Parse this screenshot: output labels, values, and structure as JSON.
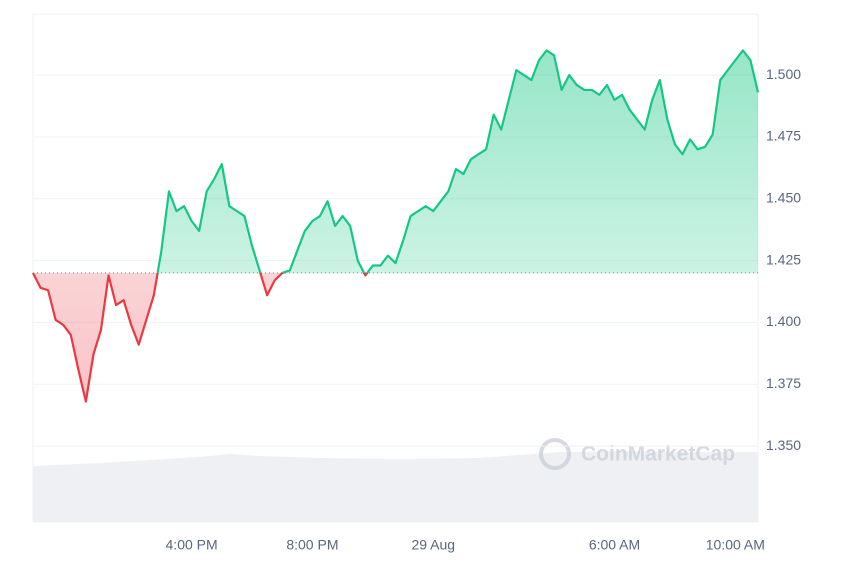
{
  "chart_data": {
    "type": "line",
    "watermark": "CoinMarketCap",
    "categories": [
      null,
      null,
      null,
      null,
      null,
      null,
      null,
      null,
      null,
      null,
      null,
      null,
      null,
      null,
      null,
      null,
      null,
      null,
      null,
      null,
      null,
      "4:00 PM",
      null,
      null,
      null,
      null,
      null,
      null,
      null,
      null,
      null,
      null,
      null,
      null,
      null,
      null,
      null,
      "8:00 PM",
      null,
      null,
      null,
      null,
      null,
      null,
      null,
      null,
      null,
      null,
      null,
      null,
      null,
      null,
      null,
      "29 Aug",
      null,
      null,
      null,
      null,
      null,
      null,
      null,
      null,
      null,
      null,
      null,
      null,
      null,
      null,
      null,
      null,
      null,
      null,
      null,
      null,
      null,
      null,
      null,
      "6:00 AM",
      null,
      null,
      null,
      null,
      null,
      null,
      null,
      null,
      null,
      null,
      null,
      null,
      null,
      null,
      null,
      "10:00 AM",
      null,
      null,
      null
    ],
    "values": [
      1.42,
      1.414,
      1.413,
      1.401,
      1.399,
      1.395,
      1.381,
      1.368,
      1.387,
      1.397,
      1.419,
      1.407,
      1.409,
      1.399,
      1.391,
      1.401,
      1.411,
      1.429,
      1.453,
      1.445,
      1.447,
      1.441,
      1.437,
      1.453,
      1.458,
      1.464,
      1.447,
      1.445,
      1.443,
      1.431,
      1.421,
      1.411,
      1.417,
      1.42,
      1.421,
      1.429,
      1.437,
      1.441,
      1.443,
      1.449,
      1.439,
      1.443,
      1.439,
      1.425,
      1.419,
      1.423,
      1.423,
      1.427,
      1.424,
      1.433,
      1.443,
      1.445,
      1.447,
      1.445,
      1.449,
      1.453,
      1.462,
      1.46,
      1.466,
      1.468,
      1.47,
      1.484,
      1.478,
      1.49,
      1.502,
      1.5,
      1.498,
      1.506,
      1.51,
      1.508,
      1.494,
      1.5,
      1.496,
      1.494,
      1.494,
      1.492,
      1.496,
      1.49,
      1.492,
      1.486,
      1.482,
      1.478,
      1.49,
      1.498,
      1.482,
      1.472,
      1.468,
      1.474,
      1.47,
      1.471,
      1.476,
      1.498,
      1.502,
      1.506,
      1.51,
      1.506,
      1.493
    ],
    "baseline": 1.42,
    "up_color": "#16c784",
    "down_color": "#ea3943",
    "ylim": [
      1.3193,
      1.5247
    ],
    "yticks": [
      {
        "value": 1.35,
        "label": "1.350"
      },
      1.375,
      {
        "value": 1.4,
        "label": "1.400"
      },
      1.425,
      {
        "value": 1.45,
        "label": "1.450"
      },
      1.475,
      {
        "value": 1.5,
        "label": "1.500"
      }
    ],
    "grid": true
  }
}
